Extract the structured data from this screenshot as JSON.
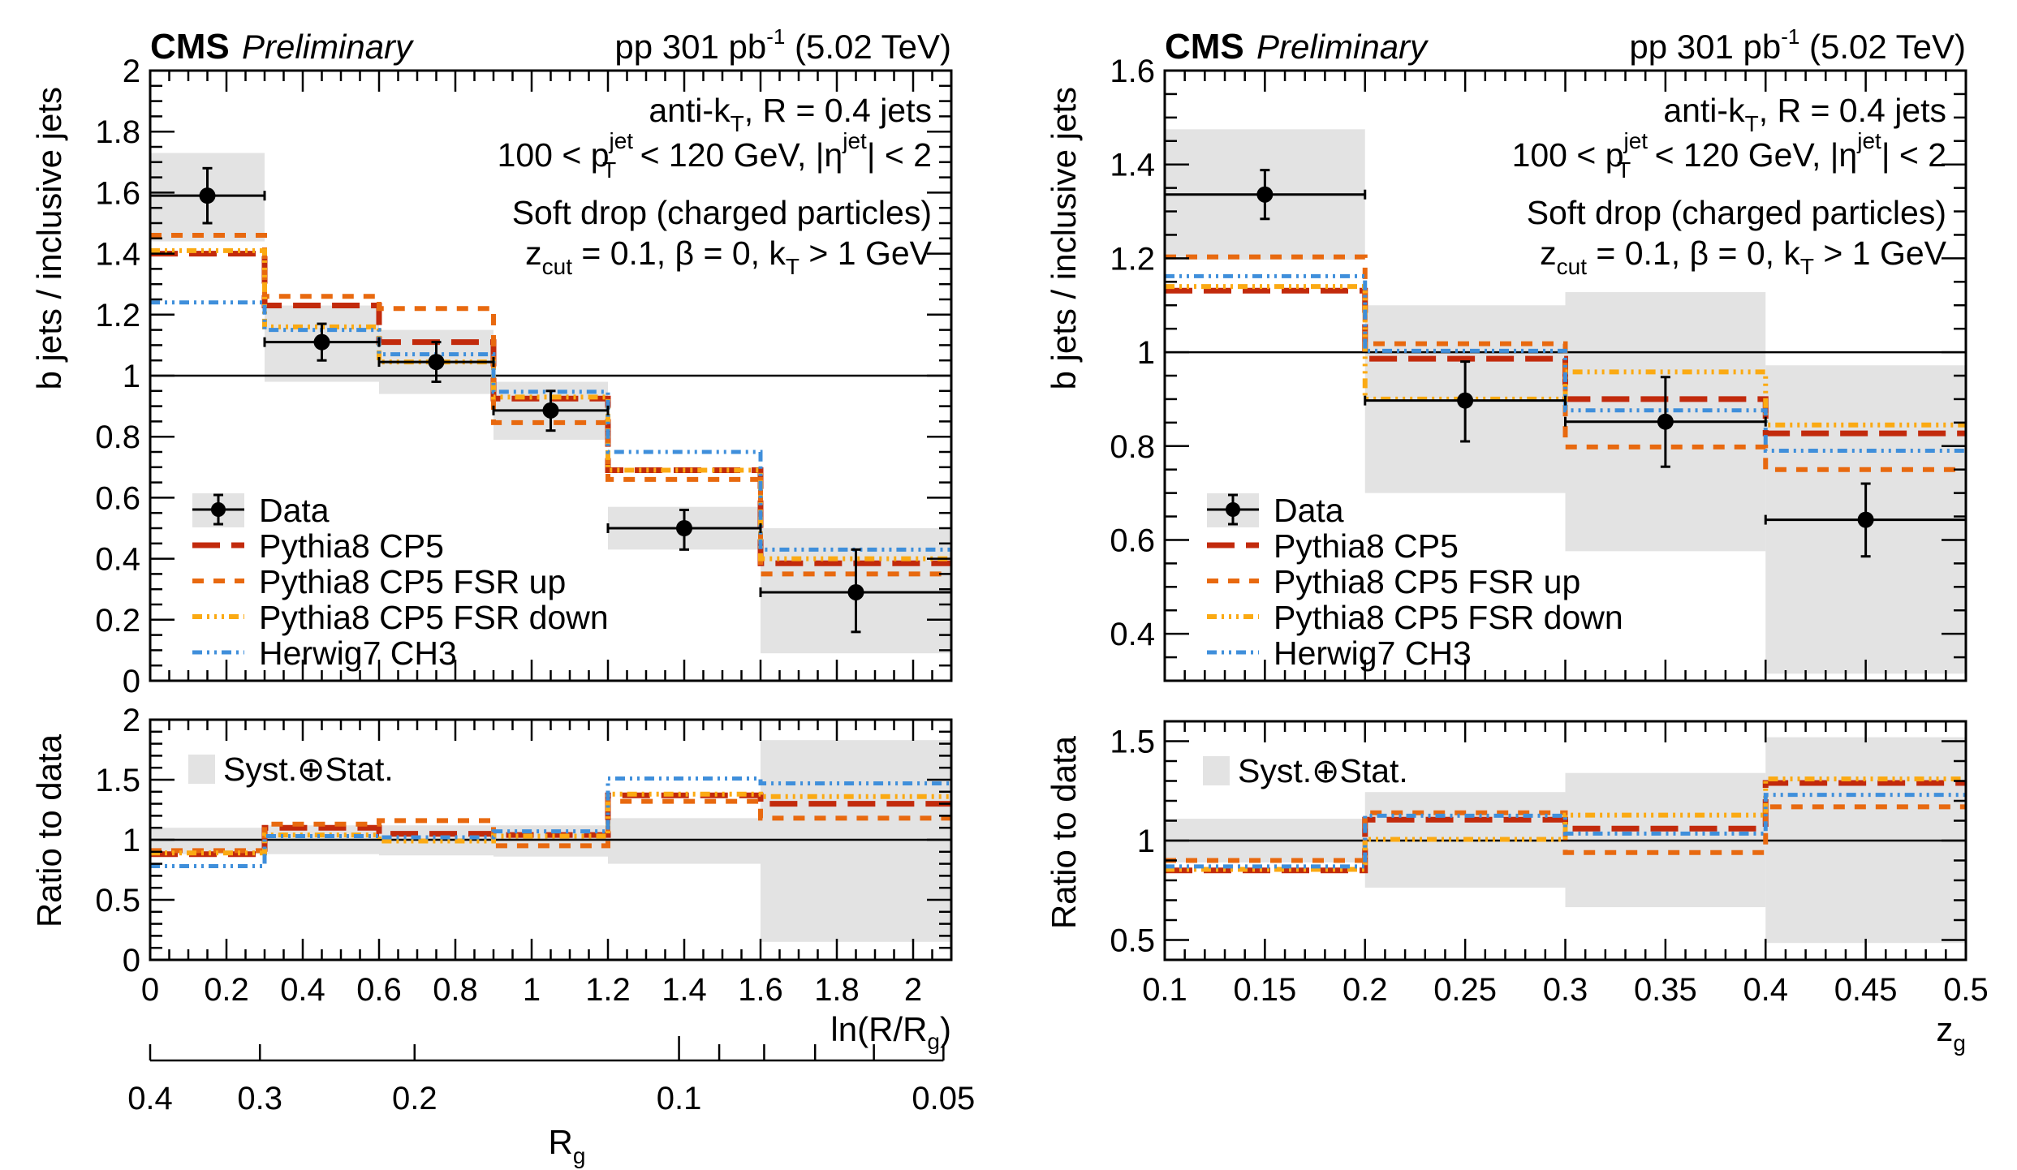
{
  "figure": {
    "experiment": "CMS",
    "status": "Preliminary",
    "lumi_text": "pp 301 pb",
    "lumi_sup": "-1",
    "energy_text": "(5.02 TeV)",
    "annotations": [
      {
        "main": "anti-k",
        "sub": "T",
        "rest": ", R = 0.4 jets"
      },
      {
        "pre": "100 < p",
        "sup": "jet",
        "sub": "T",
        "mid": " < 120 GeV, |η",
        "sup2": "jet",
        "post": "| < 2"
      },
      {
        "text": "Soft drop (charged particles)"
      },
      {
        "pre": "z",
        "sub": "cut",
        "mid": " = 0.1, β = 0, k",
        "sub2": "T",
        "post": " > 1 GeV"
      }
    ],
    "colors": {
      "data": "#000000",
      "band": "#e3e3e3",
      "pythia": "#c22a0c",
      "fsr_up": "#e8690f",
      "fsr_down": "#fbaa13",
      "herwig": "#3f8fdb"
    },
    "legend": {
      "entries": [
        {
          "key": "data",
          "label": "Data"
        },
        {
          "key": "pythia",
          "label": "Pythia8 CP5"
        },
        {
          "key": "fsr_up",
          "label": "Pythia8 CP5 FSR up"
        },
        {
          "key": "fsr_down",
          "label": "Pythia8 CP5 FSR down"
        },
        {
          "key": "herwig",
          "label": "Herwig7 CH3"
        }
      ],
      "band_label": "Syst.⊕Stat."
    }
  },
  "chart_data": [
    {
      "id": "left",
      "type": "line",
      "subtype": "step-histogram-with-ratio",
      "title": "",
      "xlabel": "ln(R/R_g)",
      "ylabel": "b jets / inclusive jets",
      "ratio_ylabel": "Ratio to data",
      "xlim": [
        0,
        2.1
      ],
      "ylim": [
        0,
        2
      ],
      "ratio_ylim": [
        0,
        2
      ],
      "xticks": [
        0,
        0.2,
        0.4,
        0.6,
        0.8,
        1,
        1.2,
        1.4,
        1.6,
        1.8,
        2
      ],
      "xtick_labels": [
        "0",
        "0.2",
        "0.4",
        "0.6",
        "0.8",
        "1",
        "1.2",
        "1.4",
        "1.6",
        "1.8",
        "2"
      ],
      "yticks": [
        0,
        0.2,
        0.4,
        0.6,
        0.8,
        1,
        1.2,
        1.4,
        1.6,
        1.8,
        2
      ],
      "ytick_labels": [
        "0",
        "0.2",
        "0.4",
        "0.6",
        "0.8",
        "1",
        "1.2",
        "1.4",
        "1.6",
        "1.8",
        "2"
      ],
      "ratio_yticks": [
        0,
        0.5,
        1,
        1.5,
        2
      ],
      "ratio_ytick_labels": [
        "0",
        "0.5",
        "1",
        "1.5",
        "2"
      ],
      "legend_position": "bottom-left",
      "bin_edges": [
        0,
        0.3,
        0.6,
        0.9,
        1.2,
        1.6,
        2.1
      ],
      "data": {
        "values": [
          1.59,
          1.11,
          1.045,
          0.886,
          0.5,
          0.29
        ],
        "stat_low": [
          1.5,
          1.05,
          0.98,
          0.82,
          0.43,
          0.16
        ],
        "stat_high": [
          1.68,
          1.17,
          1.11,
          0.95,
          0.56,
          0.43
        ],
        "band_low": [
          1.44,
          0.98,
          0.94,
          0.79,
          0.43,
          0.09
        ],
        "band_high": [
          1.73,
          1.23,
          1.15,
          0.98,
          0.57,
          0.5
        ]
      },
      "series": [
        {
          "key": "pythia",
          "name": "Pythia8 CP5",
          "values": [
            1.4,
            1.23,
            1.11,
            0.925,
            0.69,
            0.385
          ]
        },
        {
          "key": "fsr_up",
          "name": "Pythia8 CP5 FSR up",
          "values": [
            1.46,
            1.26,
            1.22,
            0.846,
            0.66,
            0.35
          ]
        },
        {
          "key": "fsr_down",
          "name": "Pythia8 CP5 FSR down",
          "values": [
            1.41,
            1.16,
            1.045,
            0.93,
            0.69,
            0.4
          ]
        },
        {
          "key": "herwig",
          "name": "Herwig7 CH3",
          "values": [
            1.24,
            1.15,
            1.07,
            0.947,
            0.75,
            0.43
          ]
        }
      ],
      "ratio": {
        "band_low": [
          0.88,
          0.88,
          0.87,
          0.86,
          0.8,
          0.15
        ],
        "band_high": [
          1.1,
          1.12,
          1.12,
          1.12,
          1.18,
          1.83
        ],
        "series": [
          {
            "key": "pythia",
            "values": [
              0.88,
              1.1,
              1.05,
              1.04,
              1.37,
              1.3
            ]
          },
          {
            "key": "fsr_up",
            "values": [
              0.91,
              1.13,
              1.16,
              0.95,
              1.32,
              1.18
            ]
          },
          {
            "key": "fsr_down",
            "values": [
              0.89,
              1.04,
              0.99,
              1.03,
              1.38,
              1.36
            ]
          },
          {
            "key": "herwig",
            "values": [
              0.78,
              1.03,
              1.02,
              1.07,
              1.51,
              1.47
            ]
          }
        ]
      },
      "secondary_axis": {
        "label": "R_g",
        "jet_radius": 0.4,
        "major_ticks": [
          0.4,
          0.3,
          0.2,
          0.1,
          0.05
        ],
        "major_labels": [
          "0.4",
          "0.3",
          "0.2",
          "0.1",
          "0.05"
        ],
        "minor_ticks": [
          0.09,
          0.08,
          0.07,
          0.06
        ]
      }
    },
    {
      "id": "right",
      "type": "line",
      "subtype": "step-histogram-with-ratio",
      "title": "",
      "xlabel": "z_g",
      "ylabel": "b jets / inclusive jets",
      "ratio_ylabel": "Ratio to data",
      "xlim": [
        0.1,
        0.5
      ],
      "ylim": [
        0.3,
        1.6
      ],
      "ratio_ylim": [
        0.4,
        1.6
      ],
      "xticks": [
        0.1,
        0.15,
        0.2,
        0.25,
        0.3,
        0.35,
        0.4,
        0.45,
        0.5
      ],
      "xtick_labels": [
        "0.1",
        "0.15",
        "0.2",
        "0.25",
        "0.3",
        "0.35",
        "0.4",
        "0.45",
        "0.5"
      ],
      "yticks": [
        0.4,
        0.6,
        0.8,
        1,
        1.2,
        1.4,
        1.6
      ],
      "ytick_labels": [
        "0.4",
        "0.6",
        "0.8",
        "1",
        "1.2",
        "1.4",
        "1.6"
      ],
      "ratio_yticks": [
        0.5,
        1,
        1.5
      ],
      "ratio_ytick_labels": [
        "0.5",
        "1",
        "1.5"
      ],
      "legend_position": "bottom-left",
      "bin_edges": [
        0.1,
        0.2,
        0.3,
        0.4,
        0.5
      ],
      "data": {
        "values": [
          1.336,
          0.897,
          0.852,
          0.643
        ],
        "stat_low": [
          1.284,
          0.81,
          0.756,
          0.565
        ],
        "stat_high": [
          1.388,
          0.98,
          0.947,
          0.72
        ],
        "band_low": [
          1.197,
          0.7,
          0.576,
          0.315
        ],
        "band_high": [
          1.475,
          1.1,
          1.128,
          0.972
        ]
      },
      "series": [
        {
          "key": "pythia",
          "name": "Pythia8 CP5",
          "values": [
            1.131,
            0.986,
            0.9,
            0.827
          ]
        },
        {
          "key": "fsr_up",
          "name": "Pythia8 CP5 FSR up",
          "values": [
            1.203,
            1.018,
            0.798,
            0.75
          ]
        },
        {
          "key": "fsr_down",
          "name": "Pythia8 CP5 FSR down",
          "values": [
            1.14,
            0.9,
            0.958,
            0.845
          ]
        },
        {
          "key": "herwig",
          "name": "Herwig7 CH3",
          "values": [
            1.162,
            1.003,
            0.876,
            0.79
          ]
        }
      ],
      "ratio": {
        "band_low": [
          0.89,
          0.763,
          0.665,
          0.485
        ],
        "band_high": [
          1.11,
          1.244,
          1.34,
          1.52
        ],
        "series": [
          {
            "key": "pythia",
            "values": [
              0.85,
              1.105,
              1.06,
              1.29
            ]
          },
          {
            "key": "fsr_up",
            "values": [
              0.9,
              1.14,
              0.94,
              1.17
            ]
          },
          {
            "key": "fsr_down",
            "values": [
              0.855,
              1.006,
              1.128,
              1.31
            ]
          },
          {
            "key": "herwig",
            "values": [
              0.87,
              1.125,
              1.035,
              1.23
            ]
          }
        ]
      }
    }
  ]
}
